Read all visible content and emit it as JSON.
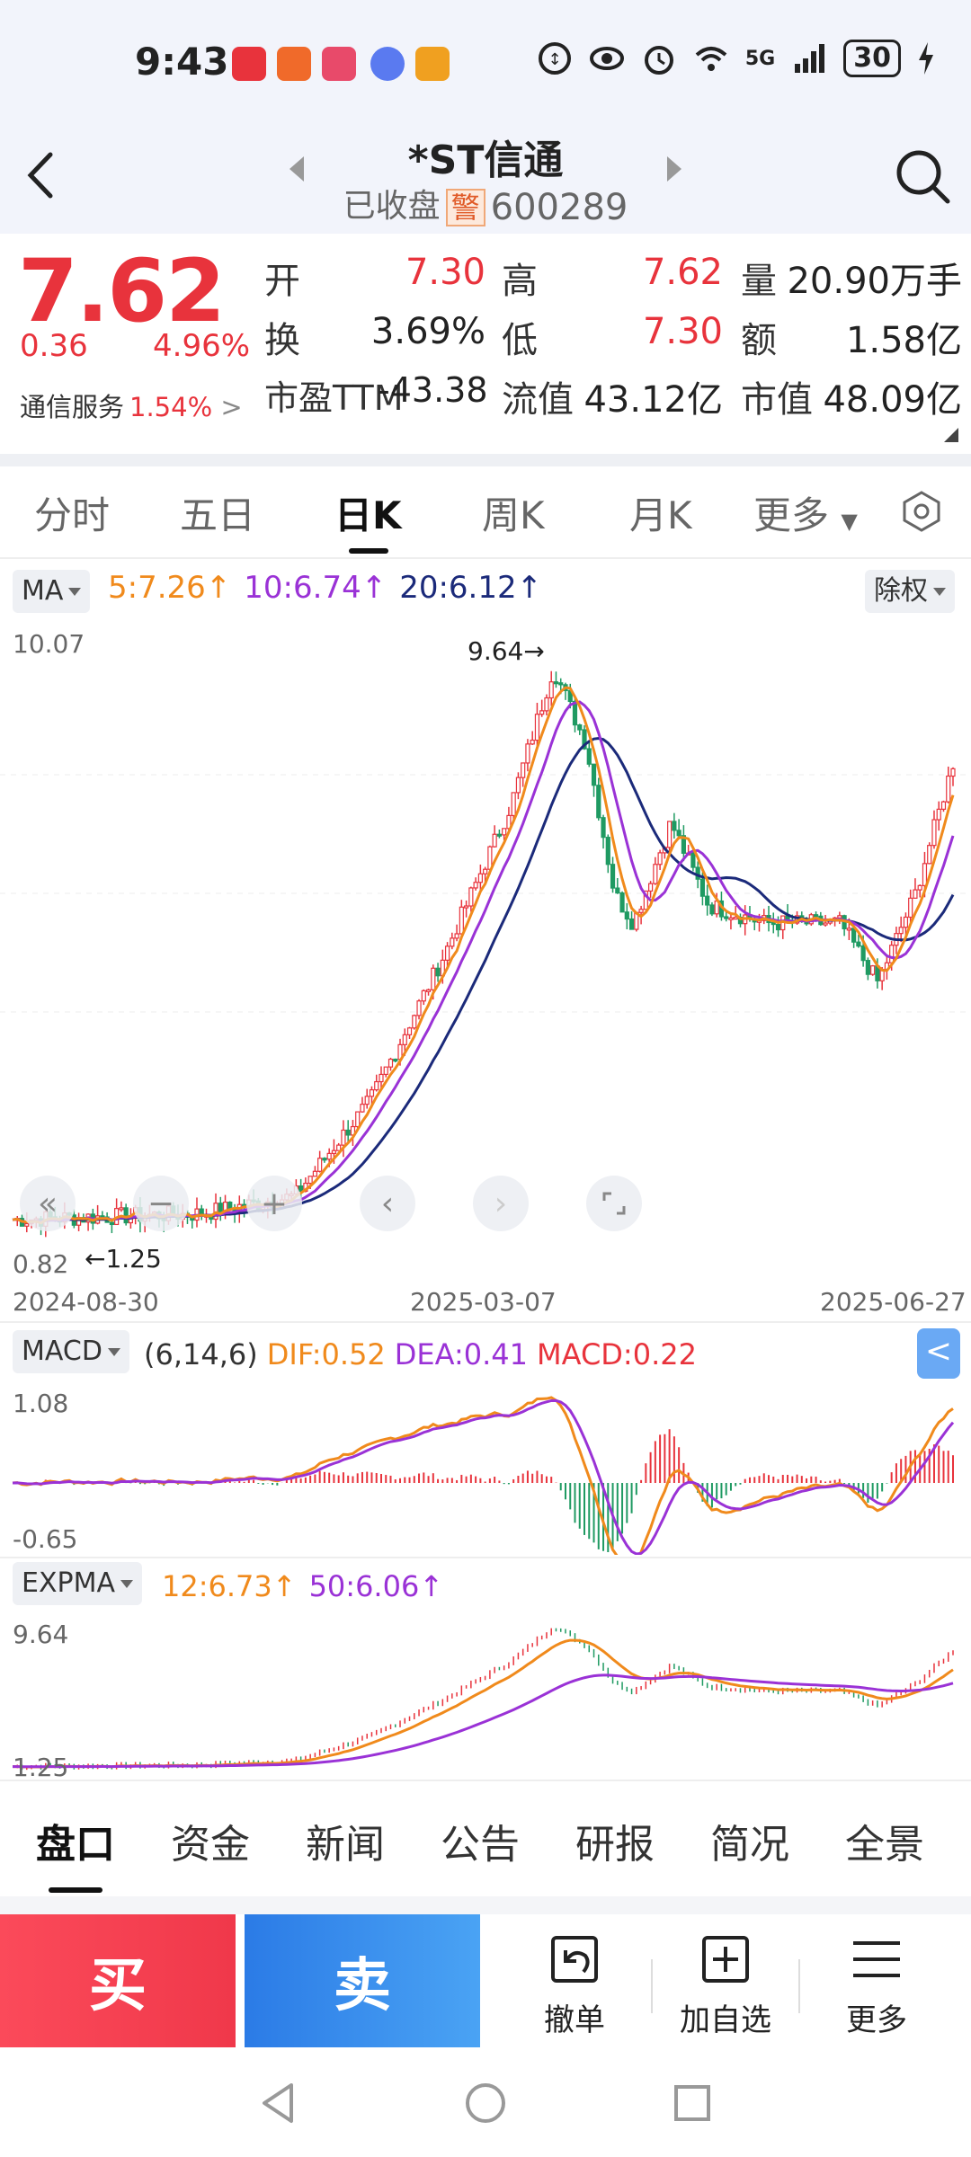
{
  "status_bar": {
    "time": "9:43",
    "battery": "30",
    "network": "5G",
    "icons": [
      "data-icon",
      "eye-icon",
      "alarm-icon",
      "wifi-icon",
      "signal-icon",
      "charging-icon"
    ]
  },
  "header": {
    "title": "*ST信通",
    "state": "已收盘",
    "warn_badge": "警",
    "code": "600289"
  },
  "quote": {
    "price": "7.62",
    "change": "0.36",
    "change_pct": "4.96%",
    "sector_name": "通信服务",
    "sector_pct": "1.54%",
    "fields": {
      "open_label": "开",
      "open": "7.30",
      "high_label": "高",
      "high": "7.62",
      "volume_label": "量",
      "volume": "20.90万手",
      "turnover_label": "换",
      "turnover": "3.69%",
      "low_label": "低",
      "low": "7.30",
      "amount_label": "额",
      "amount": "1.58亿",
      "pe_label": "市盈TTM",
      "pe": "-43.38",
      "float_cap_label": "流值",
      "float_cap": "43.12亿",
      "mkt_cap_label": "市值",
      "mkt_cap": "48.09亿"
    }
  },
  "period_tabs": [
    "分时",
    "五日",
    "日K",
    "周K",
    "月K",
    "更多"
  ],
  "active_period": "日K",
  "ma": {
    "selector": "MA",
    "ma5": "5:7.26↑",
    "ma10": "10:6.74↑",
    "ma20": "20:6.12↑",
    "adjust": "除权"
  },
  "kline": {
    "y_top": "10.07",
    "y_bottom": "0.82",
    "max_mark": "9.64→",
    "min_mark": "←1.25",
    "dates": [
      "2024-08-30",
      "2025-03-07",
      "2025-06-27"
    ]
  },
  "macd": {
    "selector": "MACD",
    "params": "(6,14,6)",
    "dif": "DIF:0.52",
    "dea": "DEA:0.41",
    "macd": "MACD:0.22",
    "y_top": "1.08",
    "y_bottom": "-0.65",
    "collapse": "<"
  },
  "expma": {
    "selector": "EXPMA",
    "e12": "12:6.73↑",
    "e50": "50:6.06↑",
    "y_top": "9.64",
    "y_bottom": "1.25"
  },
  "info_tabs": [
    "盘口",
    "资金",
    "新闻",
    "公告",
    "研报",
    "简况",
    "全景"
  ],
  "actions": {
    "buy": "买",
    "sell": "卖",
    "cancel": "撤单",
    "watchlist": "加自选",
    "more": "更多"
  },
  "colors": {
    "up": "#e8333c",
    "down": "#1f9a62",
    "ma5": "#f08a1c",
    "ma10": "#9a32d6",
    "ma20": "#1b2a7a"
  }
}
